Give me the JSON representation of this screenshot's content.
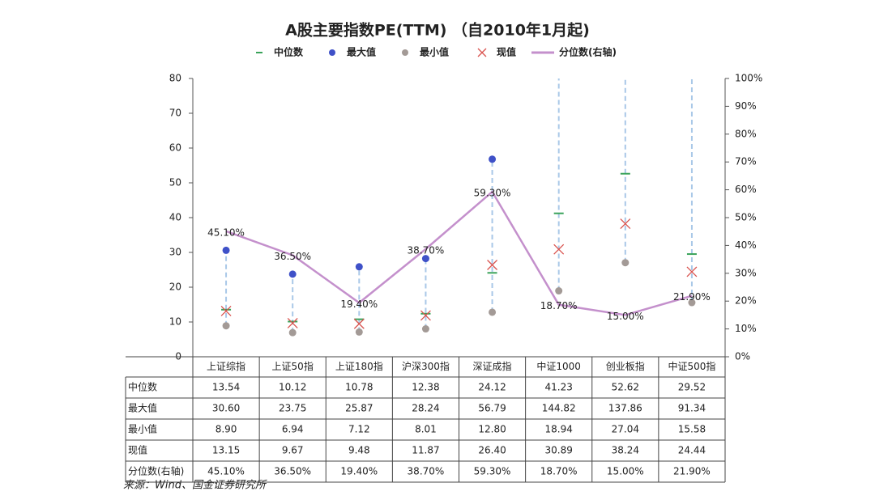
{
  "chart_data": {
    "type": "range-dot",
    "title": "A股主要指数PE(TTM) （自2010年1月起)",
    "source": "来源：Wind、国金证券研究所",
    "categories": [
      "上证综指",
      "上证50指",
      "上证180指",
      "沪深300指",
      "深证成指",
      "中证1000",
      "创业板指",
      "中证500指"
    ],
    "ylim": [
      0,
      80
    ],
    "yticks": [
      0,
      10,
      20,
      30,
      40,
      50,
      60,
      70,
      80
    ],
    "y2lim": [
      0,
      100
    ],
    "y2ticks": [
      {
        "value": 0,
        "label": "0%"
      },
      {
        "value": 10,
        "label": "10%"
      },
      {
        "value": 20,
        "label": "20%"
      },
      {
        "value": 30,
        "label": "30%"
      },
      {
        "value": 40,
        "label": "40%"
      },
      {
        "value": 50,
        "label": "50%"
      },
      {
        "value": 60,
        "label": "60%"
      },
      {
        "value": 70,
        "label": "70%"
      },
      {
        "value": 80,
        "label": "80%"
      },
      {
        "value": 90,
        "label": "90%"
      },
      {
        "value": 100,
        "label": "100%"
      }
    ],
    "series": [
      {
        "name": "中位数",
        "marker": "dash",
        "color": "#3aa35a",
        "values": [
          13.54,
          10.12,
          10.78,
          12.38,
          24.12,
          41.23,
          52.62,
          29.52
        ],
        "value_labels": [
          "13.54",
          "10.12",
          "10.78",
          "12.38",
          "24.12",
          "41.23",
          "52.62",
          "29.52"
        ]
      },
      {
        "name": "最大值",
        "marker": "dot",
        "color": "#3f51c8",
        "values": [
          30.6,
          23.75,
          25.87,
          28.24,
          56.79,
          144.82,
          137.86,
          91.34
        ],
        "value_labels": [
          "30.60",
          "23.75",
          "25.87",
          "28.24",
          "56.79",
          "144.82",
          "137.86",
          "91.34"
        ]
      },
      {
        "name": "最小值",
        "marker": "dot",
        "color": "#a39a96",
        "values": [
          8.9,
          6.94,
          7.12,
          8.01,
          12.8,
          18.94,
          27.04,
          15.58
        ],
        "value_labels": [
          "8.90",
          "6.94",
          "7.12",
          "8.01",
          "12.80",
          "18.94",
          "27.04",
          "15.58"
        ]
      },
      {
        "name": "现值",
        "marker": "cross",
        "color": "#d9534f",
        "values": [
          13.15,
          9.67,
          9.48,
          11.87,
          26.4,
          30.89,
          38.24,
          24.44
        ],
        "value_labels": [
          "13.15",
          "9.67",
          "9.48",
          "11.87",
          "26.40",
          "30.89",
          "38.24",
          "24.44"
        ]
      },
      {
        "name": "分位数(右轴)",
        "marker": "line",
        "axis": "y2",
        "color": "#c490cc",
        "values": [
          45.1,
          36.5,
          19.4,
          38.7,
          59.3,
          18.7,
          15.0,
          21.9
        ],
        "value_labels": [
          "45.10%",
          "36.50%",
          "19.40%",
          "38.70%",
          "59.30%",
          "18.70%",
          "15.00%",
          "21.90%"
        ]
      }
    ],
    "range_color": "#a9c8e8"
  }
}
